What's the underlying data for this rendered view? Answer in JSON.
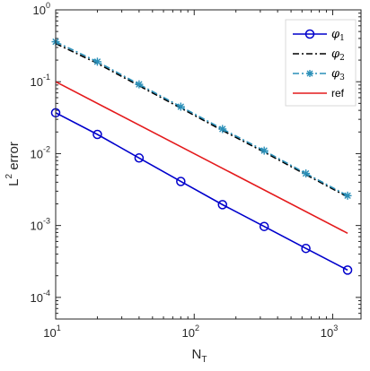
{
  "chart_data": {
    "type": "line",
    "xscale": "log",
    "yscale": "log",
    "xlim": [
      10,
      1600
    ],
    "ylim": [
      5e-05,
      1
    ],
    "xlabel": {
      "main": "N",
      "sub": "T"
    },
    "ylabel": {
      "main": "L",
      "sup": "2",
      "rest": " error"
    },
    "grid": false,
    "legend_position": "top-right",
    "x_ticks": [
      {
        "value": 10,
        "base": "10",
        "exp": "1"
      },
      {
        "value": 100,
        "base": "10",
        "exp": "2"
      },
      {
        "value": 1000,
        "base": "10",
        "exp": "3"
      }
    ],
    "y_ticks": [
      {
        "value": 0.0001,
        "base": "10",
        "exp": "-4"
      },
      {
        "value": 0.001,
        "base": "10",
        "exp": "-3"
      },
      {
        "value": 0.01,
        "base": "10",
        "exp": "-2"
      },
      {
        "value": 0.1,
        "base": "10",
        "exp": "-1"
      },
      {
        "value": 1,
        "base": "10",
        "exp": "0"
      }
    ],
    "series": [
      {
        "name": "φ1",
        "name_symbol": "φ",
        "name_sub": "1",
        "color": "#0000cc",
        "line_style": "solid",
        "marker": "circle",
        "x": [
          10,
          20,
          40,
          80,
          160,
          320,
          640,
          1280
        ],
        "y": [
          0.037,
          0.0185,
          0.0087,
          0.0041,
          0.00195,
          0.00097,
          0.00048,
          0.00024
        ]
      },
      {
        "name": "φ2",
        "name_symbol": "φ",
        "name_sub": "2",
        "color": "#000000",
        "line_style": "dashdot",
        "marker": "none",
        "x": [
          10,
          20,
          40,
          80,
          160,
          320,
          640,
          1280
        ],
        "y": [
          0.34,
          0.18,
          0.088,
          0.043,
          0.021,
          0.0105,
          0.0051,
          0.0025
        ]
      },
      {
        "name": "φ3",
        "name_symbol": "φ",
        "name_sub": "3",
        "color": "#2a8fb8",
        "line_style": "dashdot",
        "marker": "asterisk",
        "x": [
          10,
          20,
          40,
          80,
          160,
          320,
          640,
          1280
        ],
        "y": [
          0.36,
          0.19,
          0.092,
          0.045,
          0.022,
          0.011,
          0.0053,
          0.0026
        ]
      },
      {
        "name": "ref",
        "color": "#e41a1c",
        "line_style": "solid",
        "marker": "none",
        "x": [
          10,
          1280
        ],
        "y": [
          0.1,
          0.00078
        ]
      }
    ]
  }
}
